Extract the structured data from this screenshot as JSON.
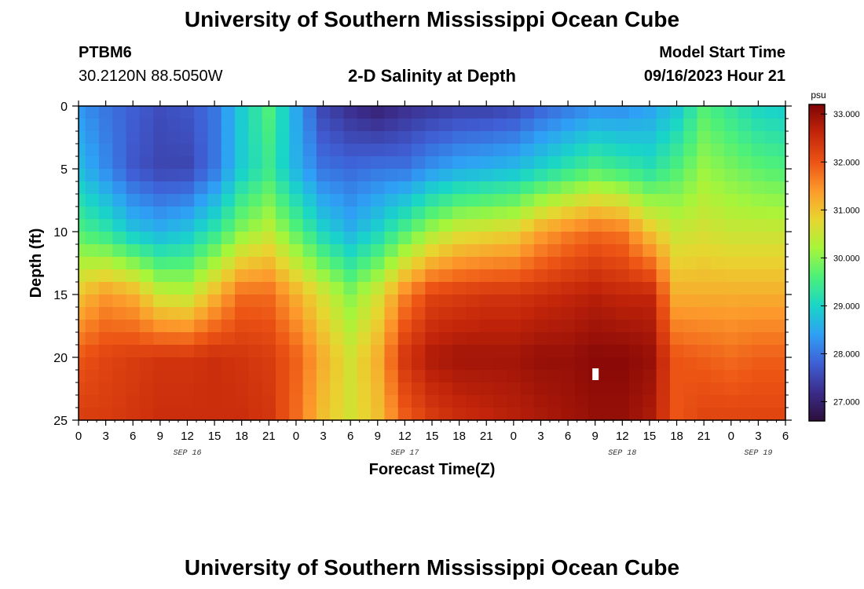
{
  "header": {
    "title": "University of Southern Mississippi Ocean Cube",
    "station_id": "PTBM6",
    "station_coords": "30.2120N  88.5050W",
    "chart_title": "2-D Salinity at Depth",
    "model_start_label": "Model Start Time",
    "model_start_value": "09/16/2023 Hour 21"
  },
  "footer": {
    "title": "University of Southern Mississippi Ocean Cube"
  },
  "chart_data": {
    "type": "heatmap",
    "title": "2-D Salinity at Depth",
    "xlabel": "Forecast Time(Z)",
    "ylabel": "Depth (ft)",
    "x_range_hours": [
      0,
      78
    ],
    "x_ticks": [
      {
        "h": 0,
        "label": "0"
      },
      {
        "h": 3,
        "label": "3"
      },
      {
        "h": 6,
        "label": "6"
      },
      {
        "h": 9,
        "label": "9"
      },
      {
        "h": 12,
        "label": "12"
      },
      {
        "h": 15,
        "label": "15"
      },
      {
        "h": 18,
        "label": "18"
      },
      {
        "h": 21,
        "label": "21"
      },
      {
        "h": 24,
        "label": "0"
      },
      {
        "h": 27,
        "label": "3"
      },
      {
        "h": 30,
        "label": "6"
      },
      {
        "h": 33,
        "label": "9"
      },
      {
        "h": 36,
        "label": "12"
      },
      {
        "h": 39,
        "label": "15"
      },
      {
        "h": 42,
        "label": "18"
      },
      {
        "h": 45,
        "label": "21"
      },
      {
        "h": 48,
        "label": "0"
      },
      {
        "h": 51,
        "label": "3"
      },
      {
        "h": 54,
        "label": "6"
      },
      {
        "h": 57,
        "label": "9"
      },
      {
        "h": 60,
        "label": "12"
      },
      {
        "h": 63,
        "label": "15"
      },
      {
        "h": 66,
        "label": "18"
      },
      {
        "h": 69,
        "label": "21"
      },
      {
        "h": 72,
        "label": "0"
      },
      {
        "h": 75,
        "label": "3"
      },
      {
        "h": 78,
        "label": "6"
      }
    ],
    "date_labels": [
      {
        "h": 12,
        "label": "SEP 16"
      },
      {
        "h": 36,
        "label": "SEP 17"
      },
      {
        "h": 60,
        "label": "SEP 18"
      },
      {
        "h": 75,
        "label": "SEP 19"
      }
    ],
    "y_range_ft": [
      0,
      25
    ],
    "y_ticks": [
      0,
      5,
      10,
      15,
      20,
      25
    ],
    "colorbar": {
      "unit": "psu",
      "range": [
        26.6,
        33.2
      ],
      "ticks": [
        "27.000",
        "28.000",
        "29.000",
        "30.000",
        "31.000",
        "32.000",
        "33.000"
      ],
      "stops": [
        "#2d0f3c",
        "#3b2c8a",
        "#3f5fd5",
        "#2ea0f5",
        "#19d5c8",
        "#4cf07a",
        "#a7f53a",
        "#e8d530",
        "#fd9a2c",
        "#ec5314",
        "#c4260a",
        "#7e0406"
      ]
    },
    "grid": {
      "time_steps_hours": [
        0,
        1.5,
        3,
        4.5,
        6,
        7.5,
        9,
        10.5,
        12,
        13.5,
        15,
        16.5,
        18,
        19.5,
        21,
        22.5,
        24,
        25.5,
        27,
        28.5,
        30,
        31.5,
        33,
        34.5,
        36,
        37.5,
        39,
        40.5,
        42,
        43.5,
        45,
        46.5,
        48,
        49.5,
        51,
        52.5,
        54,
        55.5,
        57,
        58.5,
        60,
        61.5,
        63,
        64.5,
        66,
        67.5,
        69,
        70.5,
        72,
        73.5,
        75,
        76.5,
        78
      ],
      "depth_levels_ft": [
        0,
        5,
        10,
        15,
        20,
        25
      ],
      "salinity_profiles_psu": [
        {
          "h": 0,
          "d": [
            28.3,
            28.7,
            29.6,
            31.0,
            32.0,
            32.3
          ]
        },
        {
          "h": 3,
          "d": [
            28.0,
            28.2,
            29.3,
            31.4,
            32.2,
            32.3
          ]
        },
        {
          "h": 6,
          "d": [
            27.8,
            27.7,
            28.8,
            31.2,
            32.3,
            32.4
          ]
        },
        {
          "h": 9,
          "d": [
            27.6,
            27.5,
            28.6,
            30.5,
            32.4,
            32.5
          ]
        },
        {
          "h": 12,
          "d": [
            27.7,
            27.5,
            28.8,
            30.4,
            32.4,
            32.5
          ]
        },
        {
          "h": 15,
          "d": [
            28.0,
            28.0,
            29.3,
            31.1,
            32.5,
            32.5
          ]
        },
        {
          "h": 18,
          "d": [
            28.9,
            28.9,
            30.0,
            31.8,
            32.4,
            32.5
          ]
        },
        {
          "h": 21,
          "d": [
            29.6,
            29.4,
            30.4,
            31.8,
            32.3,
            32.4
          ]
        },
        {
          "h": 24,
          "d": [
            28.5,
            28.6,
            29.7,
            31.2,
            31.9,
            31.8
          ]
        },
        {
          "h": 27,
          "d": [
            27.5,
            28.0,
            29.0,
            30.6,
            31.2,
            31.0
          ]
        },
        {
          "h": 30,
          "d": [
            27.2,
            27.9,
            28.6,
            30.0,
            30.6,
            30.6
          ]
        },
        {
          "h": 33,
          "d": [
            27.0,
            28.0,
            29.0,
            30.6,
            31.2,
            31.0
          ]
        },
        {
          "h": 36,
          "d": [
            27.2,
            28.0,
            29.6,
            31.6,
            32.4,
            31.9
          ]
        },
        {
          "h": 39,
          "d": [
            27.3,
            28.3,
            30.2,
            32.2,
            32.8,
            32.3
          ]
        },
        {
          "h": 42,
          "d": [
            27.4,
            28.5,
            30.6,
            32.3,
            32.9,
            32.5
          ]
        },
        {
          "h": 45,
          "d": [
            27.4,
            28.6,
            30.7,
            32.4,
            32.9,
            32.6
          ]
        },
        {
          "h": 48,
          "d": [
            27.5,
            28.7,
            30.8,
            32.4,
            32.9,
            32.7
          ]
        },
        {
          "h": 51,
          "d": [
            27.8,
            29.0,
            31.3,
            32.5,
            33.0,
            32.8
          ]
        },
        {
          "h": 54,
          "d": [
            28.0,
            29.3,
            31.6,
            32.6,
            33.0,
            32.9
          ]
        },
        {
          "h": 57,
          "d": [
            28.2,
            29.6,
            31.8,
            32.7,
            33.1,
            33.0
          ]
        },
        {
          "h": 60,
          "d": [
            28.2,
            29.4,
            31.7,
            32.6,
            33.1,
            33.0
          ]
        },
        {
          "h": 63,
          "d": [
            28.4,
            29.2,
            31.0,
            32.6,
            33.0,
            32.8
          ]
        },
        {
          "h": 66,
          "d": [
            28.8,
            29.6,
            30.5,
            31.2,
            32.0,
            32.0
          ]
        },
        {
          "h": 69,
          "d": [
            29.6,
            30.1,
            30.6,
            31.2,
            31.9,
            32.2
          ]
        },
        {
          "h": 72,
          "d": [
            29.3,
            29.9,
            30.5,
            31.2,
            31.8,
            32.2
          ]
        },
        {
          "h": 75,
          "d": [
            29.0,
            29.7,
            30.5,
            31.2,
            31.9,
            32.2
          ]
        },
        {
          "h": 78,
          "d": [
            28.9,
            29.6,
            30.5,
            31.2,
            31.9,
            32.2
          ]
        }
      ]
    },
    "missing_cell": {
      "h": 57,
      "depth_ft": 21
    }
  }
}
